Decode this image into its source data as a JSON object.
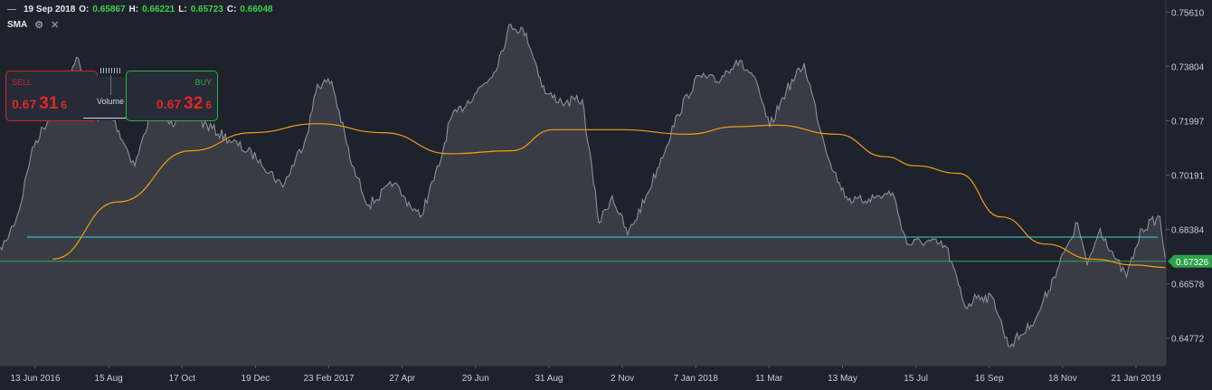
{
  "header": {
    "date": "19 Sep 2018",
    "o_label": "O:",
    "o_value": "0.65867",
    "h_label": "H:",
    "h_value": "0.66221",
    "l_label": "L:",
    "l_value": "0.65723",
    "c_label": "C:",
    "c_value": "0.66048"
  },
  "indicator": {
    "name": "SMA",
    "settings_icon": "gear-icon",
    "close_icon": "close-icon"
  },
  "trade": {
    "sell": {
      "label": "SELL",
      "prefix": "0.67",
      "big": "31",
      "suffix": "6"
    },
    "buy": {
      "label": "BUY",
      "prefix": "0.67",
      "big": "32",
      "suffix": "6"
    },
    "middle_label": "Volume"
  },
  "colors": {
    "background": "#1e222d",
    "price_line": "#8c8f97",
    "area_fill": "#3c3f48",
    "sma": "#f39c12",
    "horizontal_line": "#38d7d7",
    "current_price": "#3aa655",
    "sell": "#d0242a",
    "buy": "#2fae42"
  },
  "chart_data": {
    "type": "area",
    "instrument_hint": "daily close, ~13 Jun 2016 – Feb 2019",
    "x_tick_labels": [
      "13 Jun 2016",
      "15 Aug",
      "17 Oct",
      "19 Dec",
      "23 Feb 2017",
      "27 Apr",
      "29 Jun",
      "31 Aug",
      "2 Nov",
      "7 Jan 2018",
      "11 Mar",
      "13 May",
      "15 Jul",
      "16 Sep",
      "18 Nov",
      "21 Jan 2019"
    ],
    "y_tick_labels": [
      "0.75610",
      "0.73804",
      "0.71997",
      "0.70191",
      "0.68384",
      "0.66578",
      "0.64772"
    ],
    "ylim": [
      0.6386,
      0.7601
    ],
    "current_price_label": "0.67326",
    "current_price": 0.67326,
    "horizontal_line_value": 0.6813,
    "series": [
      {
        "kind": "price",
        "x": [
          "2016-06-08",
          "2016-06-13",
          "2016-06-24",
          "2016-07-05",
          "2016-07-22",
          "2016-08-11",
          "2016-08-29",
          "2016-09-08",
          "2016-09-29",
          "2016-10-14",
          "2016-10-31",
          "2016-11-07",
          "2016-11-22",
          "2016-12-20",
          "2017-01-12",
          "2017-01-31",
          "2017-02-20",
          "2017-03-01",
          "2017-03-13",
          "2017-03-30",
          "2017-04-13",
          "2017-05-04",
          "2017-05-12",
          "2017-05-26",
          "2017-06-11",
          "2017-06-20",
          "2017-07-11",
          "2017-07-27",
          "2017-08-10",
          "2017-08-23",
          "2017-09-08",
          "2017-09-25",
          "2017-10-09",
          "2017-10-23",
          "2017-11-03",
          "2017-11-16",
          "2017-12-03",
          "2017-12-28",
          "2018-01-14",
          "2018-01-30",
          "2018-02-15",
          "2018-03-01",
          "2018-03-15",
          "2018-03-29",
          "2018-04-13",
          "2018-04-30",
          "2018-05-14",
          "2018-05-24",
          "2018-06-06",
          "2018-06-26",
          "2018-07-08",
          "2018-07-25",
          "2018-08-10",
          "2018-08-26",
          "2018-09-06",
          "2018-09-19",
          "2018-10-01",
          "2018-10-20",
          "2018-10-26",
          "2018-11-08",
          "2018-11-20",
          "2018-11-28",
          "2018-12-06",
          "2018-12-17",
          "2018-12-30",
          "2019-01-08",
          "2019-01-21",
          "2019-02-05",
          "2019-02-10"
        ],
        "values": [
          0.678,
          0.68,
          0.69,
          0.711,
          0.723,
          0.741,
          0.72,
          0.723,
          0.705,
          0.725,
          0.718,
          0.728,
          0.72,
          0.713,
          0.707,
          0.698,
          0.715,
          0.732,
          0.733,
          0.705,
          0.692,
          0.699,
          0.695,
          0.688,
          0.705,
          0.72,
          0.729,
          0.736,
          0.752,
          0.749,
          0.729,
          0.726,
          0.727,
          0.686,
          0.695,
          0.682,
          0.696,
          0.722,
          0.735,
          0.733,
          0.74,
          0.735,
          0.718,
          0.73,
          0.739,
          0.712,
          0.697,
          0.693,
          0.694,
          0.696,
          0.679,
          0.68,
          0.678,
          0.658,
          0.662,
          0.6605,
          0.645,
          0.652,
          0.656,
          0.668,
          0.679,
          0.686,
          0.672,
          0.684,
          0.674,
          0.668,
          0.684,
          0.688,
          0.673
        ]
      },
      {
        "kind": "sma",
        "x": [
          "2016-07-22",
          "2016-09-15",
          "2016-11-15",
          "2017-01-05",
          "2017-03-01",
          "2017-04-25",
          "2017-06-20",
          "2017-08-10",
          "2017-09-15",
          "2017-11-10",
          "2018-01-05",
          "2018-02-15",
          "2018-03-20",
          "2018-05-10",
          "2018-06-20",
          "2018-07-15",
          "2018-08-20",
          "2018-09-25",
          "2018-11-01",
          "2018-12-10",
          "2019-01-15",
          "2019-02-10"
        ],
        "values": [
          0.674,
          0.693,
          0.71,
          0.716,
          0.719,
          0.716,
          0.709,
          0.71,
          0.717,
          0.717,
          0.7155,
          0.718,
          0.7185,
          0.7155,
          0.708,
          0.705,
          0.7025,
          0.688,
          0.679,
          0.674,
          0.672,
          0.6712
        ]
      }
    ]
  }
}
